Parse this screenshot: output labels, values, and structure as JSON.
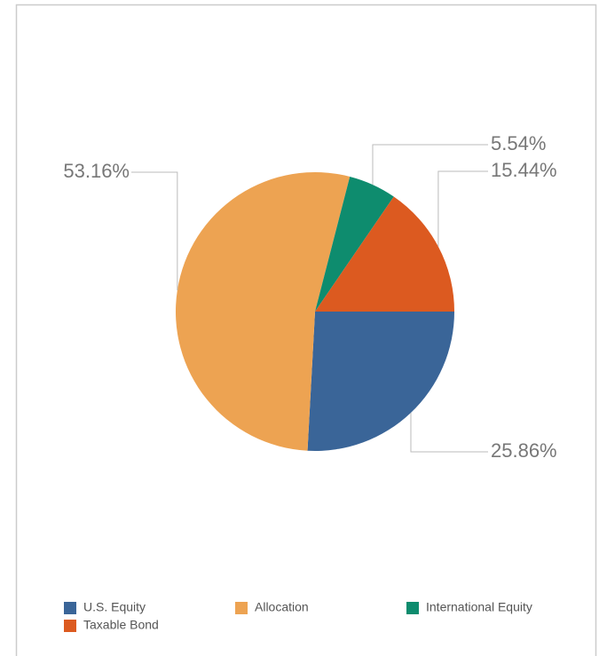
{
  "chart_data": {
    "type": "pie",
    "categories": [
      "U.S. Equity",
      "Allocation",
      "International Equity",
      "Taxable Bond"
    ],
    "values": [
      25.86,
      53.16,
      5.54,
      15.44
    ],
    "value_labels": [
      "25.86%",
      "53.16%",
      "5.54%",
      "15.44%"
    ],
    "colors": [
      "#3a6598",
      "#eda352",
      "#0e8c6e",
      "#dc5a20"
    ],
    "legend": "bottom"
  }
}
